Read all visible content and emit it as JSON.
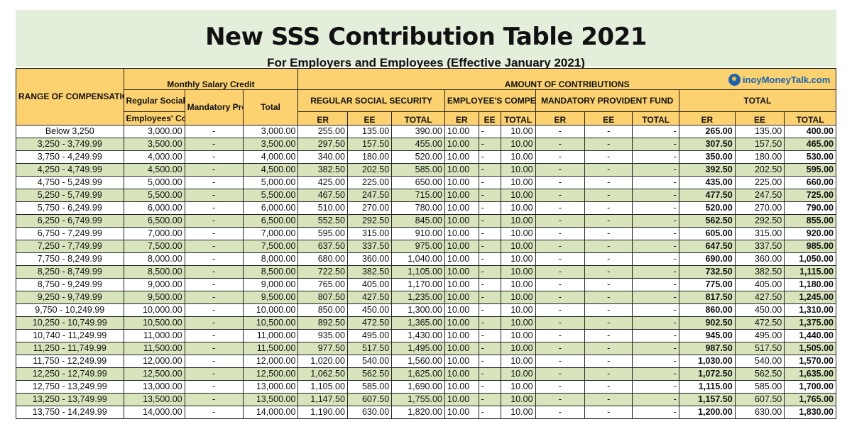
{
  "header": {
    "title": "New SSS Contribution Table 2021",
    "subtitle": "For Employers and Employees (Effective January 2021)",
    "logo_text": "inoyMoneyTalk.com"
  },
  "columns": {
    "range": "RANGE OF COMPENSATION",
    "msc": "Monthly Salary Credit",
    "amount": "AMOUNT OF CONTRIBUTIONS",
    "rss_top": "Regular Social Security/",
    "rss_bottom": "Employees' Compensation",
    "mpf": "Mandatory Provident Fund",
    "total": "Total",
    "reg_ss": "REGULAR SOCIAL SECURITY",
    "ec": "EMPLOYEE'S COMPENSATION",
    "mpf_caps": "MANDATORY PROVIDENT FUND",
    "total_caps": "TOTAL",
    "er": "ER",
    "ee": "EE",
    "total_sub": "TOTAL"
  },
  "rows": [
    {
      "range": "Below 3,250",
      "rss": "3,000.00",
      "mpf": "-",
      "msc_total": "3,000.00",
      "ss_er": "255.00",
      "ss_ee": "135.00",
      "ss_total": "390.00",
      "ec_er": "10.00",
      "ec_ee": "-",
      "ec_total": "10.00",
      "mpf_er": "-",
      "mpf_ee": "-",
      "mpf_total": "-",
      "t_er": "265.00",
      "t_ee": "135.00",
      "t_total": "400.00"
    },
    {
      "range": "3,250 - 3,749.99",
      "rss": "3,500.00",
      "mpf": "-",
      "msc_total": "3,500.00",
      "ss_er": "297.50",
      "ss_ee": "157.50",
      "ss_total": "455.00",
      "ec_er": "10.00",
      "ec_ee": "-",
      "ec_total": "10.00",
      "mpf_er": "-",
      "mpf_ee": "-",
      "mpf_total": "-",
      "t_er": "307.50",
      "t_ee": "157.50",
      "t_total": "465.00"
    },
    {
      "range": "3,750 - 4,249.99",
      "rss": "4,000.00",
      "mpf": "-",
      "msc_total": "4,000.00",
      "ss_er": "340.00",
      "ss_ee": "180.00",
      "ss_total": "520.00",
      "ec_er": "10.00",
      "ec_ee": "-",
      "ec_total": "10.00",
      "mpf_er": "-",
      "mpf_ee": "-",
      "mpf_total": "-",
      "t_er": "350.00",
      "t_ee": "180.00",
      "t_total": "530.00"
    },
    {
      "range": "4,250 - 4,749.99",
      "rss": "4,500.00",
      "mpf": "-",
      "msc_total": "4,500.00",
      "ss_er": "382.50",
      "ss_ee": "202.50",
      "ss_total": "585.00",
      "ec_er": "10.00",
      "ec_ee": "-",
      "ec_total": "10.00",
      "mpf_er": "-",
      "mpf_ee": "-",
      "mpf_total": "-",
      "t_er": "392.50",
      "t_ee": "202.50",
      "t_total": "595.00"
    },
    {
      "range": "4,750 - 5,249.99",
      "rss": "5,000.00",
      "mpf": "-",
      "msc_total": "5,000.00",
      "ss_er": "425.00",
      "ss_ee": "225.00",
      "ss_total": "650.00",
      "ec_er": "10.00",
      "ec_ee": "-",
      "ec_total": "10.00",
      "mpf_er": "-",
      "mpf_ee": "-",
      "mpf_total": "-",
      "t_er": "435.00",
      "t_ee": "225.00",
      "t_total": "660.00"
    },
    {
      "range": "5,250 - 5,749.99",
      "rss": "5,500.00",
      "mpf": "-",
      "msc_total": "5,500.00",
      "ss_er": "467.50",
      "ss_ee": "247.50",
      "ss_total": "715.00",
      "ec_er": "10.00",
      "ec_ee": "-",
      "ec_total": "10.00",
      "mpf_er": "-",
      "mpf_ee": "-",
      "mpf_total": "-",
      "t_er": "477.50",
      "t_ee": "247.50",
      "t_total": "725.00"
    },
    {
      "range": "5,750 - 6,249.99",
      "rss": "6,000.00",
      "mpf": "-",
      "msc_total": "6,000.00",
      "ss_er": "510.00",
      "ss_ee": "270.00",
      "ss_total": "780.00",
      "ec_er": "10.00",
      "ec_ee": "-",
      "ec_total": "10.00",
      "mpf_er": "-",
      "mpf_ee": "-",
      "mpf_total": "-",
      "t_er": "520.00",
      "t_ee": "270.00",
      "t_total": "790.00"
    },
    {
      "range": "6,250 - 6,749.99",
      "rss": "6,500.00",
      "mpf": "-",
      "msc_total": "6,500.00",
      "ss_er": "552.50",
      "ss_ee": "292.50",
      "ss_total": "845.00",
      "ec_er": "10.00",
      "ec_ee": "-",
      "ec_total": "10.00",
      "mpf_er": "-",
      "mpf_ee": "-",
      "mpf_total": "-",
      "t_er": "562.50",
      "t_ee": "292.50",
      "t_total": "855.00"
    },
    {
      "range": "6,750 - 7,249.99",
      "rss": "7,000.00",
      "mpf": "-",
      "msc_total": "7,000.00",
      "ss_er": "595.00",
      "ss_ee": "315.00",
      "ss_total": "910.00",
      "ec_er": "10.00",
      "ec_ee": "-",
      "ec_total": "10.00",
      "mpf_er": "-",
      "mpf_ee": "-",
      "mpf_total": "-",
      "t_er": "605.00",
      "t_ee": "315.00",
      "t_total": "920.00"
    },
    {
      "range": "7,250 - 7,749.99",
      "rss": "7,500.00",
      "mpf": "-",
      "msc_total": "7,500.00",
      "ss_er": "637.50",
      "ss_ee": "337.50",
      "ss_total": "975.00",
      "ec_er": "10.00",
      "ec_ee": "-",
      "ec_total": "10.00",
      "mpf_er": "-",
      "mpf_ee": "-",
      "mpf_total": "-",
      "t_er": "647.50",
      "t_ee": "337.50",
      "t_total": "985.00"
    },
    {
      "range": "7,750 - 8,249.99",
      "rss": "8,000.00",
      "mpf": "-",
      "msc_total": "8,000.00",
      "ss_er": "680.00",
      "ss_ee": "360.00",
      "ss_total": "1,040.00",
      "ec_er": "10.00",
      "ec_ee": "-",
      "ec_total": "10.00",
      "mpf_er": "-",
      "mpf_ee": "-",
      "mpf_total": "-",
      "t_er": "690.00",
      "t_ee": "360.00",
      "t_total": "1,050.00"
    },
    {
      "range": "8,250 - 8,749.99",
      "rss": "8,500.00",
      "mpf": "-",
      "msc_total": "8,500.00",
      "ss_er": "722.50",
      "ss_ee": "382.50",
      "ss_total": "1,105.00",
      "ec_er": "10.00",
      "ec_ee": "-",
      "ec_total": "10.00",
      "mpf_er": "-",
      "mpf_ee": "-",
      "mpf_total": "-",
      "t_er": "732.50",
      "t_ee": "382.50",
      "t_total": "1,115.00"
    },
    {
      "range": "8,750 - 9,249.99",
      "rss": "9,000.00",
      "mpf": "-",
      "msc_total": "9,000.00",
      "ss_er": "765.00",
      "ss_ee": "405.00",
      "ss_total": "1,170.00",
      "ec_er": "10.00",
      "ec_ee": "-",
      "ec_total": "10.00",
      "mpf_er": "-",
      "mpf_ee": "-",
      "mpf_total": "-",
      "t_er": "775.00",
      "t_ee": "405.00",
      "t_total": "1,180.00"
    },
    {
      "range": "9,250 - 9,749.99",
      "rss": "9,500.00",
      "mpf": "-",
      "msc_total": "9,500.00",
      "ss_er": "807.50",
      "ss_ee": "427.50",
      "ss_total": "1,235.00",
      "ec_er": "10.00",
      "ec_ee": "-",
      "ec_total": "10.00",
      "mpf_er": "-",
      "mpf_ee": "-",
      "mpf_total": "-",
      "t_er": "817.50",
      "t_ee": "427.50",
      "t_total": "1,245.00"
    },
    {
      "range": "9,750 - 10,249.99",
      "rss": "10,000.00",
      "mpf": "-",
      "msc_total": "10,000.00",
      "ss_er": "850.00",
      "ss_ee": "450.00",
      "ss_total": "1,300.00",
      "ec_er": "10.00",
      "ec_ee": "-",
      "ec_total": "10.00",
      "mpf_er": "-",
      "mpf_ee": "-",
      "mpf_total": "-",
      "t_er": "860.00",
      "t_ee": "450.00",
      "t_total": "1,310.00"
    },
    {
      "range": "10,250 - 10,749.99",
      "rss": "10,500.00",
      "mpf": "-",
      "msc_total": "10,500.00",
      "ss_er": "892.50",
      "ss_ee": "472.50",
      "ss_total": "1,365.00",
      "ec_er": "10.00",
      "ec_ee": "-",
      "ec_total": "10.00",
      "mpf_er": "-",
      "mpf_ee": "-",
      "mpf_total": "-",
      "t_er": "902.50",
      "t_ee": "472.50",
      "t_total": "1,375.00"
    },
    {
      "range": "10,740 - 11,249.99",
      "rss": "11,000.00",
      "mpf": "-",
      "msc_total": "11,000.00",
      "ss_er": "935.00",
      "ss_ee": "495.00",
      "ss_total": "1,430.00",
      "ec_er": "10.00",
      "ec_ee": "-",
      "ec_total": "10.00",
      "mpf_er": "-",
      "mpf_ee": "-",
      "mpf_total": "-",
      "t_er": "945.00",
      "t_ee": "495.00",
      "t_total": "1,440.00"
    },
    {
      "range": "11,250 - 11,749.99",
      "rss": "11,500.00",
      "mpf": "-",
      "msc_total": "11,500.00",
      "ss_er": "977.50",
      "ss_ee": "517.50",
      "ss_total": "1,495.00",
      "ec_er": "10.00",
      "ec_ee": "-",
      "ec_total": "10.00",
      "mpf_er": "-",
      "mpf_ee": "-",
      "mpf_total": "-",
      "t_er": "987.50",
      "t_ee": "517.50",
      "t_total": "1,505.00"
    },
    {
      "range": "11,750 - 12,249.99",
      "rss": "12,000.00",
      "mpf": "-",
      "msc_total": "12,000.00",
      "ss_er": "1,020.00",
      "ss_ee": "540.00",
      "ss_total": "1,560.00",
      "ec_er": "10.00",
      "ec_ee": "-",
      "ec_total": "10.00",
      "mpf_er": "-",
      "mpf_ee": "-",
      "mpf_total": "-",
      "t_er": "1,030.00",
      "t_ee": "540.00",
      "t_total": "1,570.00"
    },
    {
      "range": "12,250 - 12,749.99",
      "rss": "12,500.00",
      "mpf": "-",
      "msc_total": "12,500.00",
      "ss_er": "1,062.50",
      "ss_ee": "562.50",
      "ss_total": "1,625.00",
      "ec_er": "10.00",
      "ec_ee": "-",
      "ec_total": "10.00",
      "mpf_er": "-",
      "mpf_ee": "-",
      "mpf_total": "-",
      "t_er": "1,072.50",
      "t_ee": "562.50",
      "t_total": "1,635.00"
    },
    {
      "range": "12,750 - 13,249.99",
      "rss": "13,000.00",
      "mpf": "-",
      "msc_total": "13,000.00",
      "ss_er": "1,105.00",
      "ss_ee": "585.00",
      "ss_total": "1,690.00",
      "ec_er": "10.00",
      "ec_ee": "-",
      "ec_total": "10.00",
      "mpf_er": "-",
      "mpf_ee": "-",
      "mpf_total": "-",
      "t_er": "1,115.00",
      "t_ee": "585.00",
      "t_total": "1,700.00"
    },
    {
      "range": "13,250 - 13,749.99",
      "rss": "13,500.00",
      "mpf": "-",
      "msc_total": "13,500.00",
      "ss_er": "1,147.50",
      "ss_ee": "607.50",
      "ss_total": "1,755.00",
      "ec_er": "10.00",
      "ec_ee": "-",
      "ec_total": "10.00",
      "mpf_er": "-",
      "mpf_ee": "-",
      "mpf_total": "-",
      "t_er": "1,157.50",
      "t_ee": "607.50",
      "t_total": "1,765.00"
    },
    {
      "range": "13,750 - 14,249.99",
      "rss": "14,000.00",
      "mpf": "-",
      "msc_total": "14,000.00",
      "ss_er": "1,190.00",
      "ss_ee": "630.00",
      "ss_total": "1,820.00",
      "ec_er": "10.00",
      "ec_ee": "-",
      "ec_total": "10.00",
      "mpf_er": "-",
      "mpf_ee": "-",
      "mpf_total": "-",
      "t_er": "1,200.00",
      "t_ee": "630.00",
      "t_total": "1,830.00"
    }
  ]
}
